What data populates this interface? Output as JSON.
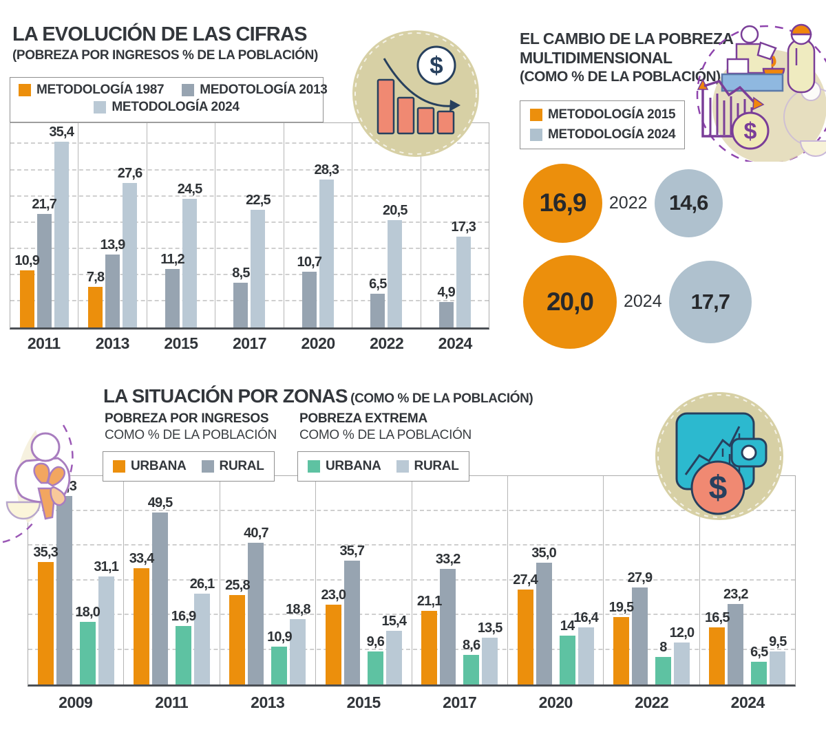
{
  "palette": {
    "orange": "#EC8F0C",
    "blue_gray_dark": "#97A4B1",
    "blue_gray_light": "#BAC9D5",
    "teal": "#5EC2A2",
    "bubble_gray": "#AFC1CE",
    "tan_circle": "#D7D0A5",
    "salmon": "#F08972",
    "navy_outline": "#27405E",
    "purple_outline": "#7A3E98",
    "text_dark": "#2F3337"
  },
  "icons": {
    "top_center": "declining-bar-chart-dollar-icon",
    "top_right": "market-vendor-illustration",
    "bottom_left": "mother-child-icon",
    "bottom_right": "wallet-dollar-icon"
  },
  "chart_data": [
    {
      "id": "evolucion",
      "type": "bar",
      "title": "LA EVOLUCIÓN DE LAS CIFRAS",
      "subtitle": "(POBREZA POR INGRESOS % DE LA POBLACIÓN)",
      "legend_position": "top",
      "grid": "dashed-horizontal",
      "series": [
        {
          "name": "METODOLOGÍA 1987",
          "color": "#EC8F0C"
        },
        {
          "name": "MEDOTOLOGÍA 2013",
          "color": "#97A4B1"
        },
        {
          "name": "METODOLOGÍA 2024",
          "color": "#BAC9D5"
        }
      ],
      "categories": [
        "2011",
        "2013",
        "2015",
        "2017",
        "2020",
        "2022",
        "2024"
      ],
      "values": [
        [
          10.9,
          21.7,
          35.4
        ],
        [
          7.8,
          13.9,
          27.6
        ],
        [
          null,
          11.2,
          24.5
        ],
        [
          null,
          8.5,
          22.5
        ],
        [
          null,
          10.7,
          28.3
        ],
        [
          null,
          6.5,
          20.5
        ],
        [
          null,
          4.9,
          17.3
        ]
      ],
      "labels": [
        [
          "10,9",
          "21,7",
          "35,4"
        ],
        [
          "7,8",
          "13,9",
          "27,6"
        ],
        [
          null,
          "11,2",
          "24,5"
        ],
        [
          null,
          "8,5",
          "22,5"
        ],
        [
          null,
          "10,7",
          "28,3"
        ],
        [
          null,
          "6,5",
          "20,5"
        ],
        [
          null,
          "4,9",
          "17,3"
        ]
      ],
      "ylim": [
        0,
        39
      ],
      "gridlines": [
        5,
        10,
        15,
        20,
        25,
        30,
        35
      ]
    },
    {
      "id": "multidimensional",
      "type": "bubble",
      "title_line1": "EL CAMBIO DE LA POBREZA",
      "title_line2": "MULTIDIMENSIONAL",
      "subtitle": "(COMO % DE LA POBLACIÓN)",
      "series": [
        {
          "name": "METODOLOGÍA 2015",
          "color": "#EC8F0C"
        },
        {
          "name": "METODOLOGÍA 2024",
          "color": "#AFC1CE"
        }
      ],
      "rows": [
        {
          "year": "2022",
          "values": [
            16.9,
            14.6
          ],
          "labels": [
            "16,9",
            "14,6"
          ]
        },
        {
          "year": "2024",
          "values": [
            20.0,
            17.7
          ],
          "labels": [
            "20,0",
            "17,7"
          ]
        }
      ]
    },
    {
      "id": "zonas",
      "type": "bar",
      "title": "LA SITUACIÓN POR ZONAS",
      "subtitle": "(COMO % DE LA POBLACIÓN)",
      "grid": "dashed-horizontal",
      "subcharts": [
        {
          "name": "POBREZA POR INGRESOS",
          "sub": "COMO % DE LA POBLACIÓN",
          "series": [
            {
              "name": "URBANA",
              "color": "#EC8F0C"
            },
            {
              "name": "RURAL",
              "color": "#97A4B1"
            }
          ]
        },
        {
          "name": "POBREZA EXTREMA",
          "sub": "COMO % DE LA POBLACIÓN",
          "series": [
            {
              "name": "URBANA",
              "color": "#5EC2A2"
            },
            {
              "name": "RURAL",
              "color": "#BAC9D5"
            }
          ]
        }
      ],
      "bar_colors": [
        "#EC8F0C",
        "#97A4B1",
        "#5EC2A2",
        "#BAC9D5"
      ],
      "categories": [
        "2009",
        "2011",
        "2013",
        "2015",
        "2017",
        "2020",
        "2022",
        "2024"
      ],
      "values": [
        [
          35.3,
          54.3,
          18.0,
          31.1
        ],
        [
          33.4,
          49.5,
          16.9,
          26.1
        ],
        [
          25.8,
          40.7,
          10.9,
          18.8
        ],
        [
          23.0,
          35.7,
          9.6,
          15.4
        ],
        [
          21.1,
          33.2,
          8.6,
          13.5
        ],
        [
          27.4,
          35.0,
          14,
          16.4
        ],
        [
          19.5,
          27.9,
          8,
          12.0
        ],
        [
          16.5,
          23.2,
          6.5,
          9.5
        ]
      ],
      "labels": [
        [
          "35,3",
          "54,3",
          "18,0",
          "31,1"
        ],
        [
          "33,4",
          "49,5",
          "16,9",
          "26,1"
        ],
        [
          "25,8",
          "40,7",
          "10,9",
          "18,8"
        ],
        [
          "23,0",
          "35,7",
          "9,6",
          "15,4"
        ],
        [
          "21,1",
          "33,2",
          "8,6",
          "13,5"
        ],
        [
          "27,4",
          "35,0",
          "14",
          "16,4"
        ],
        [
          "19,5",
          "27,9",
          "8",
          "12,0"
        ],
        [
          "16,5",
          "23,2",
          "6,5",
          "9,5"
        ]
      ],
      "ylim": [
        0,
        60
      ],
      "gridlines": [
        10,
        20,
        30,
        40,
        50
      ]
    }
  ]
}
